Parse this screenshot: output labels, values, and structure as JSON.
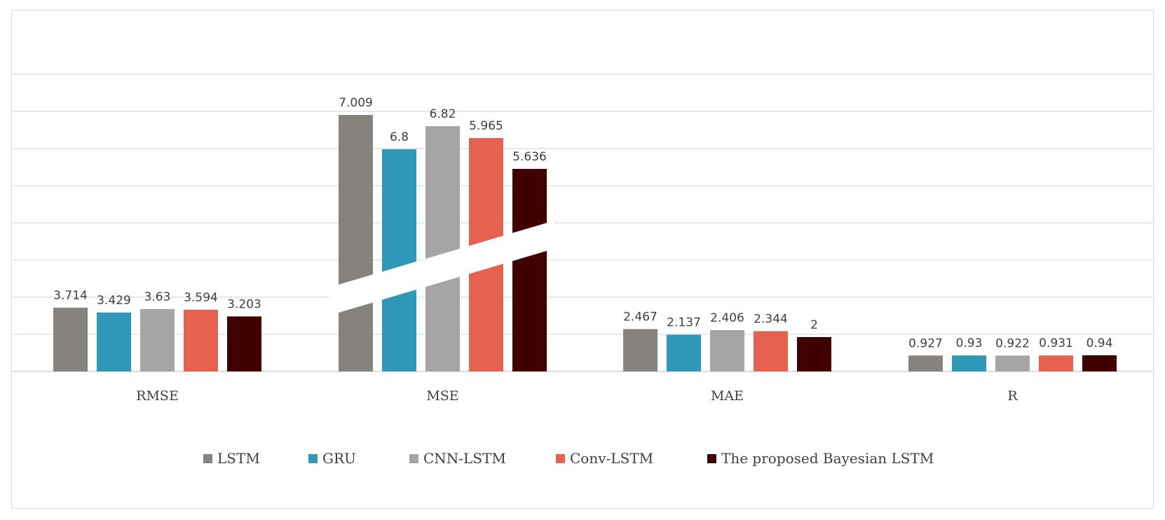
{
  "chart_data": {
    "type": "bar",
    "categories": [
      "RMSE",
      "MSE",
      "MAE",
      "R"
    ],
    "series": [
      {
        "name": "LSTM",
        "color": "#86837f",
        "values": [
          3.714,
          7.009,
          2.467,
          0.927
        ],
        "labels": [
          "3.714",
          "7.009",
          "2.467",
          "0.927"
        ]
      },
      {
        "name": "GRU",
        "color": "#2f98b9",
        "values": [
          3.429,
          6.8,
          2.137,
          0.93
        ],
        "labels": [
          "3.429",
          "6.8",
          "2.137",
          "0.93"
        ]
      },
      {
        "name": "CNN-LSTM",
        "color": "#a5a5a5",
        "values": [
          3.63,
          6.82,
          2.406,
          0.922
        ],
        "labels": [
          "3.63",
          "6.82",
          "2.406",
          "0.922"
        ]
      },
      {
        "name": "Conv-LSTM",
        "color": "#e56150",
        "values": [
          3.594,
          5.965,
          2.344,
          0.931
        ],
        "labels": [
          "3.594",
          "5.965",
          "2.344",
          "0.931"
        ]
      },
      {
        "name": "The proposed Bayesian LSTM",
        "color": "#400000",
        "values": [
          3.203,
          5.636,
          2,
          0.94
        ],
        "labels": [
          "3.203",
          "5.636",
          "2",
          "0.94"
        ]
      }
    ],
    "axis_break": "broken bars in MSE group",
    "grid": "horizontal",
    "legend": "bottom"
  }
}
